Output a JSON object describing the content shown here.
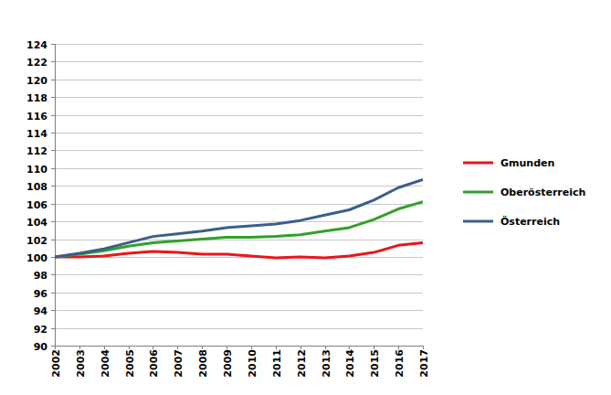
{
  "chart_data": {
    "type": "line",
    "categories": [
      "2002",
      "2003",
      "2004",
      "2005",
      "2006",
      "2007",
      "2008",
      "2009",
      "2010",
      "2011",
      "2012",
      "2013",
      "2014",
      "2015",
      "2016",
      "2017"
    ],
    "series": [
      {
        "name": "Gmunden",
        "color": "#e8161b",
        "values": [
          100,
          100.0,
          100.1,
          100.4,
          100.6,
          100.5,
          100.3,
          100.3,
          100.1,
          99.9,
          100.0,
          99.9,
          100.1,
          100.5,
          101.3,
          101.6
        ]
      },
      {
        "name": "Oberösterreich",
        "color": "#33a02c",
        "values": [
          100,
          100.3,
          100.7,
          101.2,
          101.6,
          101.8,
          102.0,
          102.2,
          102.2,
          102.3,
          102.5,
          102.9,
          103.3,
          104.2,
          105.4,
          106.2
        ]
      },
      {
        "name": "Österreich",
        "color": "#3a5f8c",
        "values": [
          100,
          100.4,
          100.9,
          101.6,
          102.3,
          102.6,
          102.9,
          103.3,
          103.5,
          103.7,
          104.1,
          104.7,
          105.3,
          106.4,
          107.8,
          108.7
        ]
      }
    ],
    "ylim": [
      90,
      124
    ],
    "yticks": [
      90,
      92,
      94,
      96,
      98,
      100,
      102,
      104,
      106,
      108,
      110,
      112,
      114,
      116,
      118,
      120,
      122,
      124
    ],
    "grid": true,
    "legend": "right"
  }
}
